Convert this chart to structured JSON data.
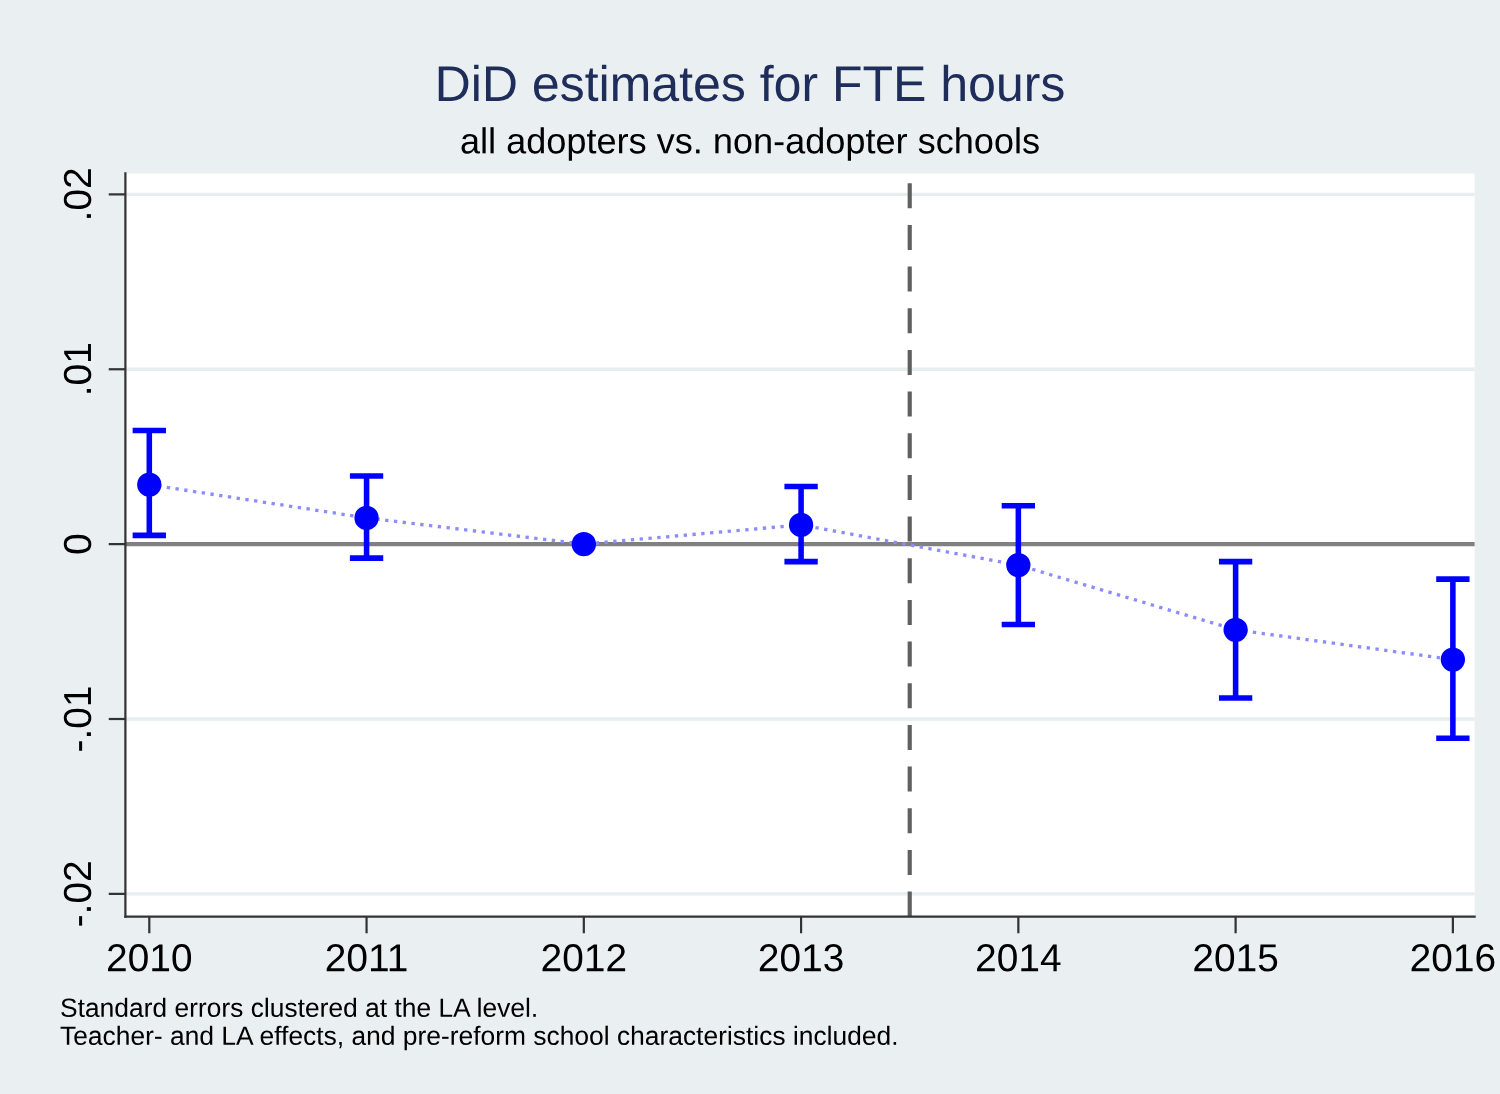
{
  "chart_data": {
    "type": "scatter",
    "title": "DiD estimates for FTE hours",
    "subtitle": "all adopters vs. non-adopter schools",
    "x": [
      2010,
      2011,
      2012,
      2013,
      2014,
      2015,
      2016
    ],
    "series": [
      {
        "type": "line",
        "color": "#8c8cff",
        "line_style": "dotted",
        "marker": "none",
        "values": [
          0.0034,
          0.0015,
          0,
          0.0011,
          -0.0012,
          -0.0049,
          -0.0066
        ]
      },
      {
        "color": "#0000ff",
        "marker": "circle",
        "values": [
          0.0034,
          0.0015,
          0,
          0.0011,
          -0.0012,
          -0.0049,
          -0.0066
        ],
        "errors": [
          [
            0.0005,
            0.0065
          ],
          [
            -0.0008,
            0.0039
          ],
          null,
          [
            -0.001,
            0.0033
          ],
          [
            -0.0046,
            0.0022
          ],
          [
            -0.0088,
            -0.001
          ],
          [
            -0.0111,
            -0.002
          ]
        ]
      }
    ],
    "xlim": [
      2009.89,
      2016.1
    ],
    "xticks": [
      2010,
      2011,
      2012,
      2013,
      2014,
      2015,
      2016
    ],
    "ylim": [
      -0.0213,
      0.0212
    ],
    "yticks": [
      {
        "value": -0.02,
        "label": "-.02"
      },
      {
        "value": -0.01,
        "label": "-.01"
      },
      {
        "value": 0,
        "label": "0"
      },
      {
        "value": 0.01,
        "label": ".01"
      },
      {
        "value": 0.02,
        "label": ".02"
      }
    ],
    "grid": "y",
    "ref_lines": [
      {
        "axis": "y",
        "value": 0,
        "color": "#808080",
        "line_style": "solid"
      },
      {
        "axis": "x",
        "value": 2013.5,
        "color": "#606060",
        "line_style": "dashed"
      }
    ],
    "annotations": [
      "Standard errors clustered at the LA level.",
      "Teacher- and LA effects, and pre-reform school characteristics included."
    ]
  }
}
